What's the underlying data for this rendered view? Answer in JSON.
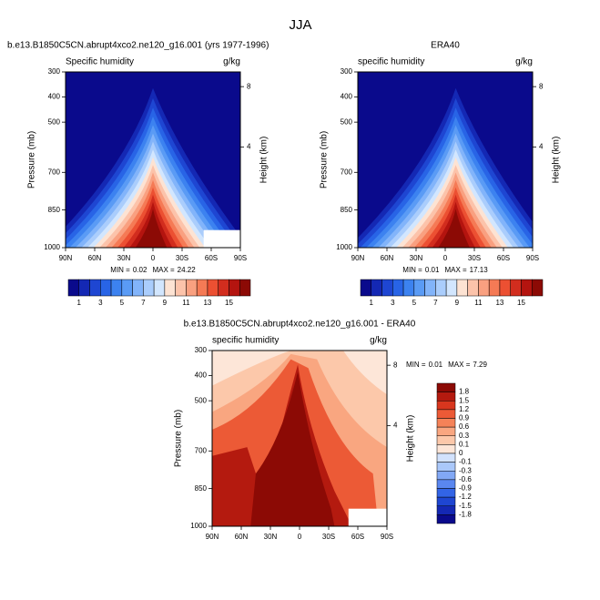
{
  "title": "JJA",
  "panels": [
    {
      "title": "b.e13.B1850C5CN.abrupt4xco2.ne120_g16.001 (yrs 1977-1996)",
      "left_label": "Specific humidity",
      "right_label": "g/kg",
      "y_label": "Pressure (mb)",
      "y2_label": "Height (km)",
      "ylim": [
        300,
        1000
      ],
      "yticks": [
        300,
        400,
        500,
        700,
        850,
        1000
      ],
      "y2ticks": [
        4,
        8
      ],
      "xlim": [
        90,
        -90
      ],
      "xticks": [
        {
          "value": 90,
          "label": "90N"
        },
        {
          "value": 60,
          "label": "60N"
        },
        {
          "value": 30,
          "label": "30N"
        },
        0,
        {
          "value": -30,
          "label": "30S"
        },
        {
          "value": -60,
          "label": "60S"
        },
        {
          "value": -90,
          "label": "90S"
        }
      ],
      "min_label": "MIN =",
      "min": 0.02,
      "max_label": "MAX =",
      "max": 24.22,
      "colorbar": {
        "labels": [
          1,
          3,
          5,
          7,
          9,
          11,
          13,
          15
        ],
        "colors": [
          "#0a0a8c",
          "#1428b4",
          "#1e46d2",
          "#2864e6",
          "#3c82f0",
          "#5a9bf5",
          "#82b4fa",
          "#aacdfc",
          "#d2e6fe",
          "#fde3d3",
          "#fcc3aa",
          "#f9a080",
          "#f57a55",
          "#ec5032",
          "#d22d1e",
          "#b4140f",
          "#8c0a05"
        ]
      }
    },
    {
      "title": "ERA40",
      "left_label": "specific humidity",
      "right_label": "g/kg",
      "y_label": "Pressure (mb)",
      "y2_label": "Height (km)",
      "ylim": [
        300,
        1000
      ],
      "yticks": [
        300,
        400,
        500,
        700,
        850,
        1000
      ],
      "y2ticks": [
        4,
        8
      ],
      "xlim": [
        90,
        -90
      ],
      "xticks": [
        {
          "value": 90,
          "label": "90N"
        },
        {
          "value": 60,
          "label": "60N"
        },
        {
          "value": 30,
          "label": "30N"
        },
        0,
        {
          "value": -30,
          "label": "30S"
        },
        {
          "value": -60,
          "label": "60S"
        },
        {
          "value": -90,
          "label": "90S"
        }
      ],
      "min_label": "MIN =",
      "min": 0.01,
      "max_label": "MAX =",
      "max": 17.13,
      "colorbar": {
        "labels": [
          1,
          3,
          5,
          7,
          9,
          11,
          13,
          15
        ],
        "colors": [
          "#0a0a8c",
          "#1428b4",
          "#1e46d2",
          "#2864e6",
          "#3c82f0",
          "#5a9bf5",
          "#82b4fa",
          "#aacdfc",
          "#d2e6fe",
          "#fde3d3",
          "#fcc3aa",
          "#f9a080",
          "#f57a55",
          "#ec5032",
          "#d22d1e",
          "#b4140f",
          "#8c0a05"
        ]
      }
    },
    {
      "title": "b.e13.B1850C5CN.abrupt4xco2.ne120_g16.001 - ERA40",
      "left_label": "specific humidity",
      "right_label": "g/kg",
      "y_label": "Pressure (mb)",
      "y2_label": "Height (km)",
      "ylim": [
        300,
        1000
      ],
      "yticks": [
        300,
        400,
        500,
        700,
        850,
        1000
      ],
      "y2ticks": [
        4,
        8
      ],
      "xlim": [
        90,
        -90
      ],
      "xticks": [
        {
          "value": 90,
          "label": "90N"
        },
        {
          "value": 60,
          "label": "60N"
        },
        {
          "value": 30,
          "label": "30N"
        },
        0,
        {
          "value": -30,
          "label": "30S"
        },
        {
          "value": -60,
          "label": "60S"
        },
        {
          "value": -90,
          "label": "90S"
        }
      ],
      "min_label": "MIN =",
      "min": 0.01,
      "max_label": "MAX =",
      "max": 7.29,
      "colorbar": {
        "labels": [
          1.8,
          1.5,
          1.2,
          0.9,
          0.6,
          0.3,
          0.1,
          0,
          -0.1,
          -0.3,
          -0.6,
          -0.9,
          -1.2,
          -1.5,
          -1.8
        ],
        "colors": [
          "#8c0a05",
          "#b41a0f",
          "#d8361e",
          "#ec5a36",
          "#f58258",
          "#f9a680",
          "#fcc8aa",
          "#fde6d8",
          "#d2e2fd",
          "#aac8fa",
          "#82a8f5",
          "#5a87f0",
          "#3264e6",
          "#1e46d2",
          "#1428b4",
          "#0a0a8c"
        ]
      }
    }
  ]
}
